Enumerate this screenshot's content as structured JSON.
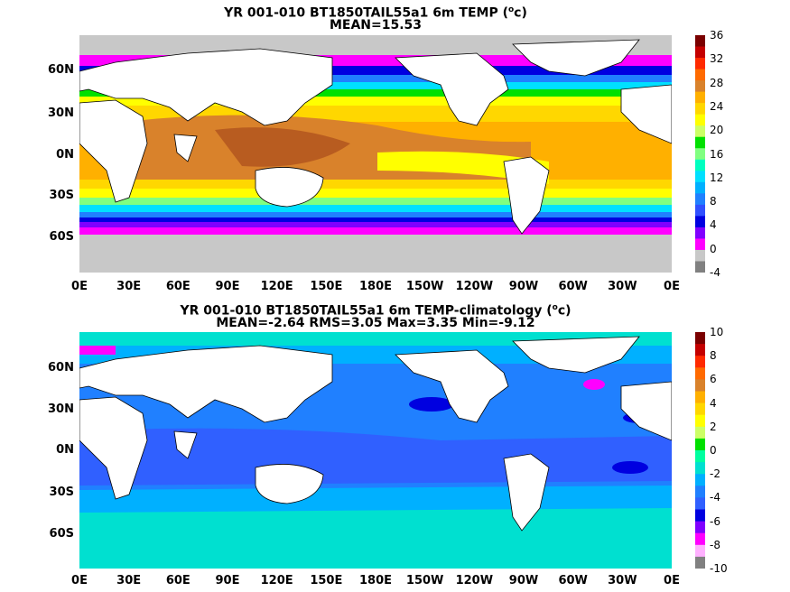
{
  "panel1": {
    "title_line1": "YR 001-010 BT1850TAIL55a1 6m TEMP (",
    "title_unit_sup": "o",
    "title_unit_rest": "c)",
    "title_line2": "MEAN=15.53",
    "colorbar_labels": [
      "36",
      "32",
      "28",
      "24",
      "20",
      "16",
      "12",
      "8",
      "4",
      "0",
      "-4"
    ],
    "colorbar_colors": [
      "#7a0000",
      "#c40000",
      "#ff2a00",
      "#ff6a00",
      "#d9822b",
      "#ffb000",
      "#ffd700",
      "#ffff00",
      "#ccff66",
      "#00e000",
      "#80ff80",
      "#00ffc0",
      "#00e0ff",
      "#00b0ff",
      "#2080ff",
      "#3050ff",
      "#0000e0",
      "#8000ff",
      "#ff00ff",
      "#c8c8c8",
      "#808080"
    ]
  },
  "panel2": {
    "title_line1": "YR 001-010 BT1850TAIL55a1 6m TEMP-climatology (",
    "title_unit_sup": "o",
    "title_unit_rest": "c)",
    "title_line2": "MEAN=-2.64   RMS=3.05   Max=3.35   Min=-9.12",
    "colorbar_labels": [
      "10",
      "8",
      "6",
      "4",
      "2",
      "0",
      "-2",
      "-4",
      "-6",
      "-8",
      "-10"
    ],
    "colorbar_colors": [
      "#7a0000",
      "#c40000",
      "#ff2a00",
      "#ff6a00",
      "#d9822b",
      "#ffb000",
      "#ffd700",
      "#ffff00",
      "#ccff66",
      "#00e000",
      "#00ffa0",
      "#00e0d0",
      "#00b0ff",
      "#2080ff",
      "#3060ff",
      "#0000e0",
      "#8000ff",
      "#ff00ff",
      "#ffb0ff",
      "#808080"
    ]
  },
  "lat_labels": [
    "60N",
    "30N",
    "0N",
    "30S",
    "60S"
  ],
  "lon_labels": [
    "0E",
    "30E",
    "60E",
    "90E",
    "120E",
    "150E",
    "180E",
    "150W",
    "120W",
    "90W",
    "60W",
    "30W",
    "0E"
  ]
}
